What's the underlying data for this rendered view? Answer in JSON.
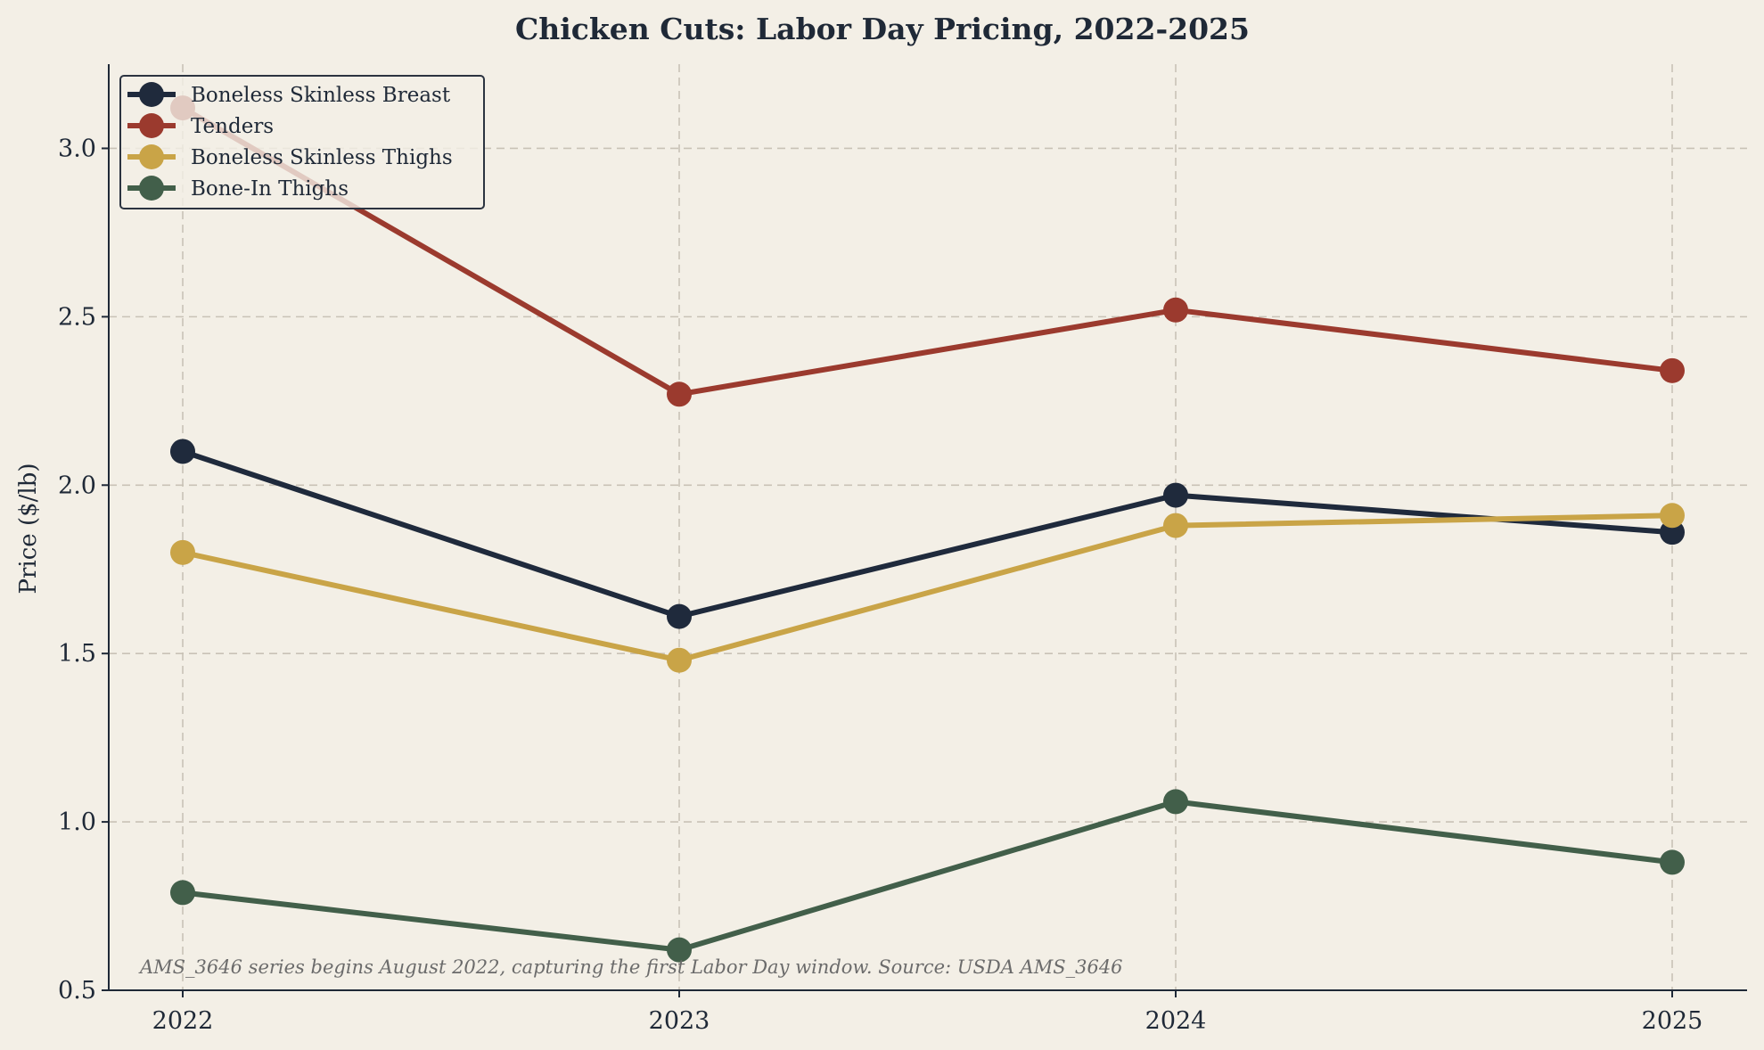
{
  "chart_data": {
    "type": "line",
    "title": "Chicken Cuts: Labor Day Pricing, 2022-2025",
    "xlabel": "",
    "ylabel": "Price ($/lb)",
    "x": [
      "2022",
      "2023",
      "2024",
      "2025"
    ],
    "ylim": [
      0.5,
      3.25
    ],
    "yticks": [
      0.5,
      1.0,
      1.5,
      2.0,
      2.5,
      3.0
    ],
    "ytick_labels": [
      "0.5",
      "1.0",
      "1.5",
      "2.0",
      "2.5",
      "3.0"
    ],
    "grid": true,
    "legend_position": "top-left",
    "series": [
      {
        "name": "Boneless Skinless Breast",
        "color": "#1f2a3c",
        "values": [
          2.1,
          1.61,
          1.97,
          1.86
        ]
      },
      {
        "name": "Tenders",
        "color": "#9b3a2e",
        "values": [
          3.12,
          2.27,
          2.52,
          2.34
        ]
      },
      {
        "name": "Boneless Skinless Thighs",
        "color": "#c9a447",
        "values": [
          1.8,
          1.48,
          1.88,
          1.91
        ]
      },
      {
        "name": "Bone-In Thighs",
        "color": "#425f4a",
        "values": [
          0.79,
          0.62,
          1.06,
          0.88
        ]
      }
    ],
    "annotation": "AMS_3646 series begins August 2022, capturing the first Labor Day window. Source: USDA AMS_3646"
  },
  "colors": {
    "background": "#f3efe6",
    "text": "#1f2937",
    "grid": "#c9c2b6"
  }
}
